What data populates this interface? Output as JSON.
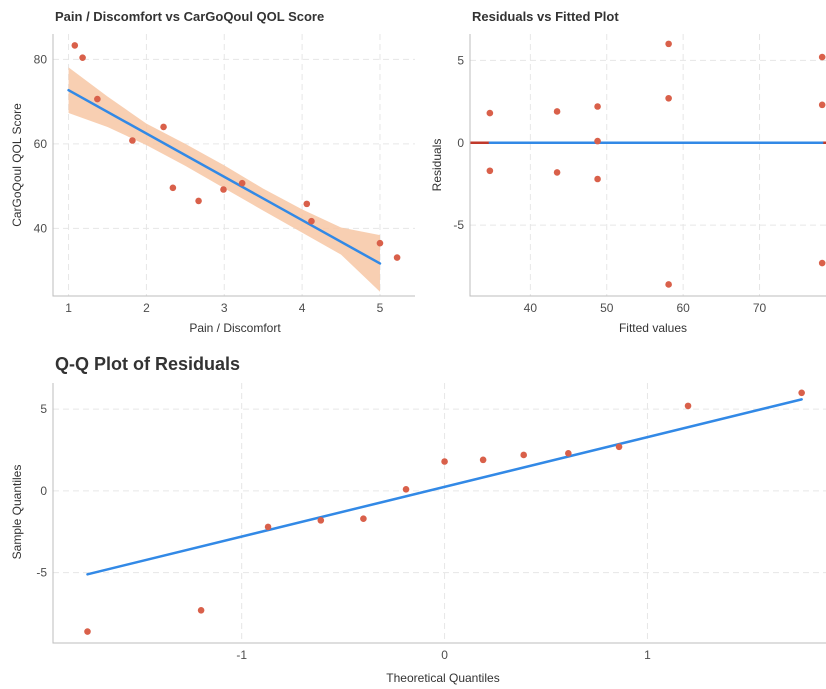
{
  "chart_data": [
    {
      "type": "scatter",
      "title": "Pain / Discomfort vs CarGoQoul QOL Score",
      "xlabel": "Pain / Discomfort",
      "ylabel": "CarGoQoul QOL Score",
      "xlim": [
        0.8,
        5.45
      ],
      "ylim": [
        24,
        86
      ],
      "x_ticks": [
        "1",
        "2",
        "3",
        "4",
        "5"
      ],
      "y_ticks": [
        "40",
        "60",
        "80"
      ],
      "points": [
        {
          "x": 1.08,
          "y": 83.3
        },
        {
          "x": 1.18,
          "y": 80.4
        },
        {
          "x": 1.37,
          "y": 70.6
        },
        {
          "x": 1.82,
          "y": 60.8
        },
        {
          "x": 2.22,
          "y": 64.0
        },
        {
          "x": 2.34,
          "y": 49.6
        },
        {
          "x": 2.67,
          "y": 46.5
        },
        {
          "x": 2.99,
          "y": 49.2
        },
        {
          "x": 3.23,
          "y": 50.7
        },
        {
          "x": 4.06,
          "y": 45.8
        },
        {
          "x": 4.12,
          "y": 41.7
        },
        {
          "x": 5.0,
          "y": 36.5
        },
        {
          "x": 5.22,
          "y": 33.1
        }
      ],
      "fit_line": {
        "x": [
          1.0,
          5.0
        ],
        "y": [
          72.7,
          31.7
        ]
      },
      "ci_band": {
        "x": [
          1.0,
          1.5,
          2.0,
          2.5,
          3.0,
          3.5,
          4.0,
          4.5,
          5.0
        ],
        "lower": [
          67.3,
          64.0,
          59.7,
          54.8,
          49.5,
          44.2,
          39.0,
          33.8,
          25.0
        ],
        "upper": [
          78.1,
          71.2,
          64.8,
          60.0,
          54.9,
          49.4,
          44.5,
          40.2,
          38.4
        ]
      },
      "colors": {
        "points": "#d9604a",
        "line": "#3289e6",
        "band": "#f7c7a4"
      }
    },
    {
      "type": "scatter",
      "title": "Residuals vs Fitted Plot",
      "xlabel": "Fitted values",
      "ylabel": "Residuals",
      "xlim": [
        32.1,
        78.7
      ],
      "ylim": [
        -9.3,
        6.6
      ],
      "x_ticks": [
        "40",
        "50",
        "60",
        "70"
      ],
      "y_ticks": [
        "5",
        "0",
        "-5"
      ],
      "points": [
        {
          "x": 34.7,
          "y": 1.8
        },
        {
          "x": 34.7,
          "y": -1.7
        },
        {
          "x": 43.5,
          "y": 1.9
        },
        {
          "x": 43.5,
          "y": -1.8
        },
        {
          "x": 48.8,
          "y": 2.2
        },
        {
          "x": 48.8,
          "y": 0.1
        },
        {
          "x": 48.8,
          "y": -2.2
        },
        {
          "x": 58.1,
          "y": 6.0
        },
        {
          "x": 58.1,
          "y": 2.7
        },
        {
          "x": 58.1,
          "y": -8.6
        },
        {
          "x": 78.2,
          "y": 5.2
        },
        {
          "x": 78.2,
          "y": 2.3
        },
        {
          "x": 78.2,
          "y": -7.3
        }
      ],
      "zero_line": {
        "y": 0,
        "color": "#c0392b"
      },
      "fit_line": {
        "x": [
          34.7,
          78.2
        ],
        "y": [
          0,
          0
        ]
      },
      "colors": {
        "points": "#d9604a",
        "line": "#3289e6"
      }
    },
    {
      "type": "scatter",
      "title": "Q-Q Plot of Residuals",
      "xlabel": "Theoretical Quantiles",
      "ylabel": "Sample Quantiles",
      "xlim": [
        -1.93,
        1.88
      ],
      "ylim": [
        -9.3,
        6.6
      ],
      "x_ticks": [
        "-1",
        "0",
        "1"
      ],
      "y_ticks": [
        "5",
        "0",
        "-5"
      ],
      "points": [
        {
          "x": -1.76,
          "y": -8.6
        },
        {
          "x": -1.2,
          "y": -7.3
        },
        {
          "x": -0.87,
          "y": -2.2
        },
        {
          "x": -0.61,
          "y": -1.8
        },
        {
          "x": -0.4,
          "y": -1.7
        },
        {
          "x": -0.19,
          "y": 0.1
        },
        {
          "x": 0.0,
          "y": 1.8
        },
        {
          "x": 0.19,
          "y": 1.9
        },
        {
          "x": 0.39,
          "y": 2.2
        },
        {
          "x": 0.61,
          "y": 2.3
        },
        {
          "x": 0.86,
          "y": 2.7
        },
        {
          "x": 1.2,
          "y": 5.2
        },
        {
          "x": 1.76,
          "y": 6.0
        }
      ],
      "fit_line": {
        "x": [
          -1.76,
          1.76
        ],
        "y": [
          -5.1,
          5.6
        ]
      },
      "colors": {
        "points": "#d9604a",
        "line": "#3289e6"
      }
    }
  ]
}
